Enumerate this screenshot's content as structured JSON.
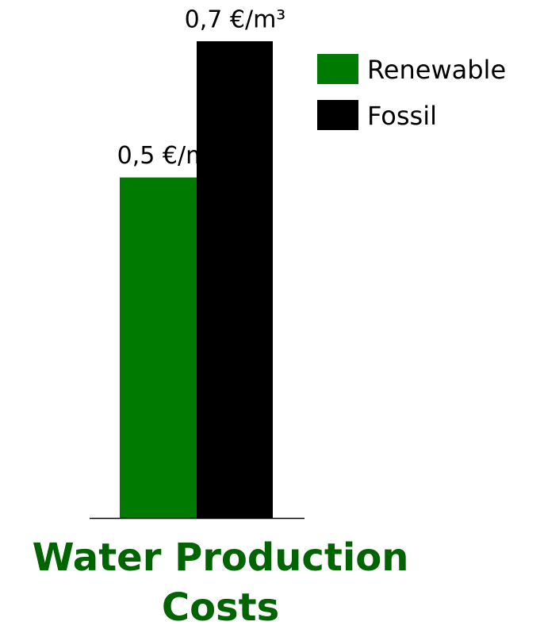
{
  "chart_data": {
    "type": "bar",
    "title": "Water Production Costs",
    "categories": [
      null
    ],
    "series": [
      {
        "name": "Renewable",
        "color": "#007a00",
        "values": [
          0.5
        ],
        "value_labels": [
          "0,5 €/m³"
        ]
      },
      {
        "name": "Fossil",
        "color": "#000000",
        "values": [
          0.7
        ],
        "value_labels": [
          "0,7 €/m³"
        ]
      }
    ],
    "legend": "upper right"
  }
}
